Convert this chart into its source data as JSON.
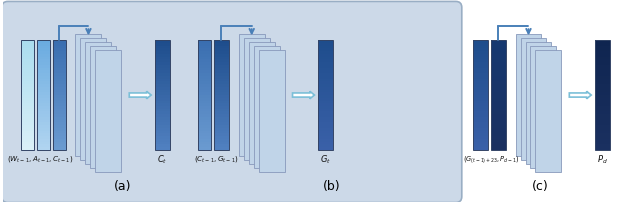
{
  "fig_width": 6.4,
  "fig_height": 2.02,
  "bg_color": "#ccd9e8",
  "panel_a_label": "(a)",
  "panel_b_label": "(b)",
  "panel_c_label": "(c)",
  "label_wa": "$(W_{t-1}, A_{t-1}, C_{t-1})$",
  "label_ct": "$C_t$",
  "label_cg": "$(C_{t-1}, G_{t-1})$",
  "label_gt": "$G_t$",
  "label_gpd": "$(G_{(t-1)+23}, P_{d-1})$",
  "label_pd": "$P_d$",
  "arrow_color": "#7bbfd8",
  "connector_color": "#4a80b8",
  "color_cyan": "#aadcee",
  "color_light_blue": "#6aabe0",
  "color_mid_blue": "#3a6eb0",
  "color_dark_blue": "#1e4d8c",
  "color_darker_blue": "#163870",
  "color_very_dark": "#0f2550",
  "color_navy": "#0a1a38",
  "color_stack_face": "#c0d4e8",
  "color_stack_edge": "#8899bb"
}
